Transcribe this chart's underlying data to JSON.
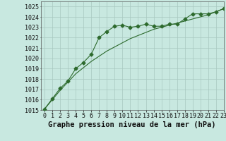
{
  "xlabel": "Graphe pression niveau de la mer (hPa)",
  "ylim": [
    1015,
    1025.5
  ],
  "xlim": [
    -0.5,
    23
  ],
  "yticks": [
    1015,
    1016,
    1017,
    1018,
    1019,
    1020,
    1021,
    1022,
    1023,
    1024,
    1025
  ],
  "xticks": [
    0,
    1,
    2,
    3,
    4,
    5,
    6,
    7,
    8,
    9,
    10,
    11,
    12,
    13,
    14,
    15,
    16,
    17,
    18,
    19,
    20,
    21,
    22,
    23
  ],
  "bg_color": "#c8e8e0",
  "grid_color": "#a8c8c0",
  "line_color": "#2d6a2d",
  "data_x": [
    0,
    1,
    2,
    3,
    4,
    5,
    6,
    7,
    8,
    9,
    10,
    11,
    12,
    13,
    14,
    15,
    16,
    17,
    18,
    19,
    20,
    21,
    22,
    23
  ],
  "data_y1": [
    1015.1,
    1016.1,
    1017.1,
    1017.8,
    1019.0,
    1019.6,
    1020.4,
    1022.0,
    1022.6,
    1023.1,
    1023.2,
    1023.0,
    1023.1,
    1023.3,
    1023.1,
    1023.1,
    1023.3,
    1023.3,
    1023.8,
    1024.3,
    1024.3,
    1024.3,
    1024.5,
    1024.8
  ],
  "data_y2": [
    1015.1,
    1016.0,
    1016.9,
    1017.7,
    1018.5,
    1019.1,
    1019.7,
    1020.2,
    1020.7,
    1021.1,
    1021.5,
    1021.9,
    1022.2,
    1022.5,
    1022.8,
    1023.0,
    1023.2,
    1023.4,
    1023.6,
    1023.8,
    1024.0,
    1024.2,
    1024.5,
    1024.8
  ],
  "marker": "D",
  "marker_size": 2.5,
  "line_width": 0.8,
  "tick_fontsize": 6,
  "xlabel_fontsize": 7.5
}
